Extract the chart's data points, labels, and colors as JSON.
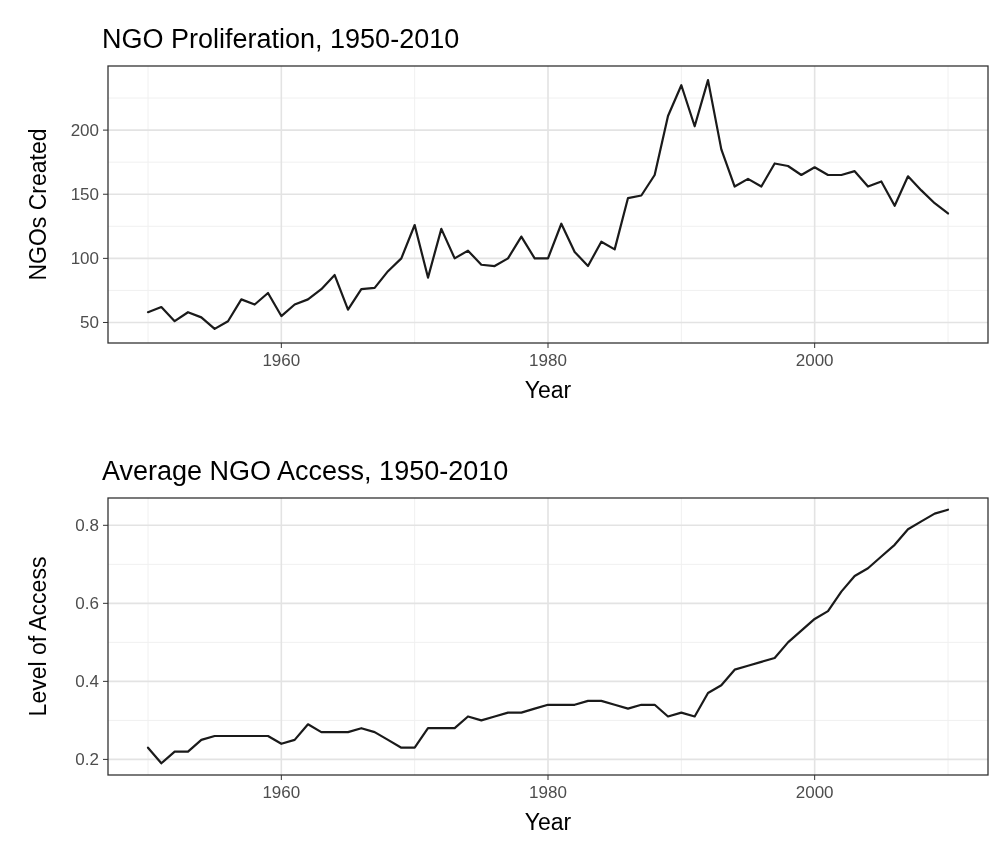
{
  "chart_data": [
    {
      "type": "line",
      "title": "NGO Proliferation, 1950-2010",
      "xlabel": "Year",
      "ylabel": "NGOs Created",
      "x": [
        1950,
        1951,
        1952,
        1953,
        1954,
        1955,
        1956,
        1957,
        1958,
        1959,
        1960,
        1961,
        1962,
        1963,
        1964,
        1965,
        1966,
        1967,
        1968,
        1969,
        1970,
        1971,
        1972,
        1973,
        1974,
        1975,
        1976,
        1977,
        1978,
        1979,
        1980,
        1981,
        1982,
        1983,
        1984,
        1985,
        1986,
        1987,
        1988,
        1989,
        1990,
        1991,
        1992,
        1993,
        1994,
        1995,
        1996,
        1997,
        1998,
        1999,
        2000,
        2001,
        2002,
        2003,
        2004,
        2005,
        2006,
        2007,
        2008,
        2009,
        2010
      ],
      "series": [
        {
          "color": "#1a1a1a",
          "values": [
            58,
            62,
            51,
            58,
            54,
            45,
            51,
            68,
            64,
            73,
            55,
            64,
            68,
            76,
            87,
            60,
            76,
            77,
            90,
            100,
            126,
            85,
            123,
            100,
            106,
            95,
            94,
            100,
            117,
            100,
            100,
            127,
            105,
            94,
            113,
            107,
            147,
            149,
            165,
            211,
            235,
            203,
            239,
            185,
            156,
            162,
            156,
            174,
            172,
            165,
            171,
            165,
            165,
            168,
            156,
            160,
            141,
            164,
            153,
            143,
            135
          ]
        }
      ],
      "xlim": [
        1947,
        2013
      ],
      "xticks": [
        1960,
        1980,
        2000
      ],
      "ylim": [
        34,
        250
      ],
      "yticks": [
        50,
        100,
        150,
        200
      ],
      "grid": true
    },
    {
      "type": "line",
      "title": "Average NGO Access, 1950-2010",
      "xlabel": "Year",
      "ylabel": "Level of Access",
      "x": [
        1950,
        1951,
        1952,
        1953,
        1954,
        1955,
        1956,
        1957,
        1958,
        1959,
        1960,
        1961,
        1962,
        1963,
        1964,
        1965,
        1966,
        1967,
        1968,
        1969,
        1970,
        1971,
        1972,
        1973,
        1974,
        1975,
        1976,
        1977,
        1978,
        1979,
        1980,
        1981,
        1982,
        1983,
        1984,
        1985,
        1986,
        1987,
        1988,
        1989,
        1990,
        1991,
        1992,
        1993,
        1994,
        1995,
        1996,
        1997,
        1998,
        1999,
        2000,
        2001,
        2002,
        2003,
        2004,
        2005,
        2006,
        2007,
        2008,
        2009,
        2010
      ],
      "series": [
        {
          "color": "#1a1a1a",
          "values": [
            0.23,
            0.19,
            0.22,
            0.22,
            0.25,
            0.26,
            0.26,
            0.26,
            0.26,
            0.26,
            0.24,
            0.25,
            0.29,
            0.27,
            0.27,
            0.27,
            0.28,
            0.27,
            0.25,
            0.23,
            0.23,
            0.28,
            0.28,
            0.28,
            0.31,
            0.3,
            0.31,
            0.32,
            0.32,
            0.33,
            0.34,
            0.34,
            0.34,
            0.35,
            0.35,
            0.34,
            0.33,
            0.34,
            0.34,
            0.31,
            0.32,
            0.31,
            0.37,
            0.39,
            0.43,
            0.44,
            0.45,
            0.46,
            0.5,
            0.53,
            0.56,
            0.58,
            0.63,
            0.67,
            0.69,
            0.72,
            0.75,
            0.79,
            0.81,
            0.83,
            0.84
          ]
        }
      ],
      "xlim": [
        1947,
        2013
      ],
      "xticks": [
        1960,
        1980,
        2000
      ],
      "ylim": [
        0.16,
        0.87
      ],
      "yticks": [
        0.2,
        0.4,
        0.6,
        0.8
      ],
      "grid": true
    }
  ]
}
